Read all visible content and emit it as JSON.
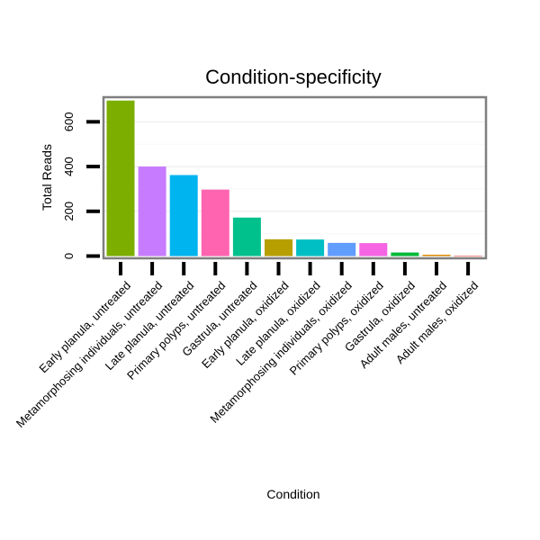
{
  "chart_data": {
    "type": "bar",
    "title": "Condition-specificity",
    "xlabel": "Condition",
    "ylabel": "Total Reads",
    "ylim": [
      -10,
      710
    ],
    "yticks": [
      0,
      200,
      400,
      600
    ],
    "grid": true,
    "categories": [
      "Early planula, untreated",
      "Metamorphosing individuals, untreated",
      "Late planula, untreated",
      "Primary polyps, untreated",
      "Gastrula, untreated",
      "Early planula, oxidized",
      "Late planula, oxidized",
      "Metamorphosing individuals, oxidized",
      "Primary polyps, oxidized",
      "Gastrula, oxidized",
      "Adult males, untreated",
      "Adult males, oxidized"
    ],
    "values": [
      695,
      400,
      362,
      297,
      172,
      75,
      74,
      59,
      58,
      16,
      6,
      1
    ],
    "colors": [
      "#7CAE00",
      "#C77CFF",
      "#00B4F0",
      "#FF64B0",
      "#00C08B",
      "#B79F00",
      "#00BFC4",
      "#619CFF",
      "#F564E3",
      "#00BA38",
      "#DE8C00",
      "#F8766D"
    ]
  }
}
